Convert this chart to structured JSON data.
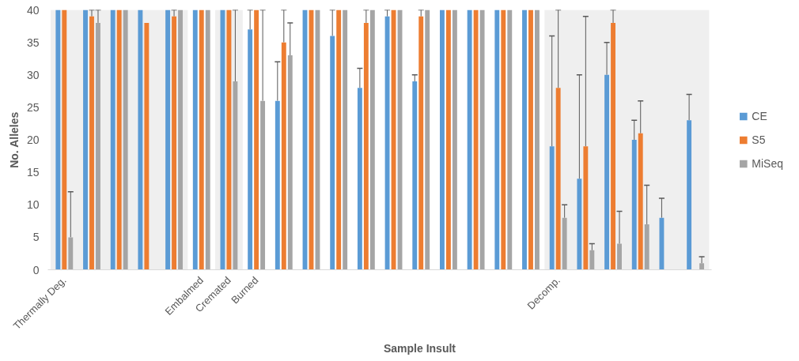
{
  "chart_data": {
    "type": "bar",
    "xlabel": "Sample Insult",
    "ylabel": "No. Alleles",
    "categories": [
      "Thermally Deg.",
      null,
      null,
      null,
      null,
      "Embalmed",
      "Cremated",
      "Burned",
      null,
      null,
      null,
      null,
      null,
      null,
      null,
      null,
      null,
      null,
      "Decomp.",
      null,
      null,
      null,
      null,
      null
    ],
    "series": [
      {
        "name": "CE",
        "color": "#5b9bd5",
        "values": [
          40,
          40,
          40,
          40,
          40,
          40,
          40,
          37,
          26,
          40,
          36,
          28,
          39,
          29,
          40,
          40,
          40,
          40,
          19,
          14,
          30,
          20,
          8,
          23
        ],
        "errors": [
          null,
          null,
          null,
          null,
          null,
          null,
          null,
          [
            37,
            40
          ],
          [
            26,
            32
          ],
          null,
          [
            36,
            40
          ],
          [
            28,
            31
          ],
          [
            39,
            40
          ],
          [
            29,
            30
          ],
          null,
          null,
          null,
          null,
          [
            19,
            36
          ],
          [
            14,
            30
          ],
          [
            30,
            35
          ],
          [
            20,
            23
          ],
          [
            8,
            11
          ],
          [
            23,
            27
          ]
        ]
      },
      {
        "name": "S5",
        "color": "#ed7d31",
        "values": [
          40,
          39,
          40,
          38,
          39,
          40,
          40,
          40,
          35,
          40,
          40,
          38,
          40,
          39,
          40,
          40,
          40,
          40,
          28,
          19,
          38,
          21,
          0,
          0
        ],
        "errors": [
          null,
          [
            39,
            40
          ],
          null,
          null,
          [
            39,
            40
          ],
          null,
          null,
          null,
          [
            35,
            40
          ],
          null,
          null,
          [
            38,
            40
          ],
          null,
          [
            39,
            40
          ],
          null,
          null,
          null,
          null,
          [
            28,
            40
          ],
          [
            19,
            39
          ],
          [
            38,
            40
          ],
          [
            21,
            26
          ],
          null,
          null
        ]
      },
      {
        "name": "MiSeq",
        "color": "#a5a5a5",
        "values": [
          5,
          38,
          40,
          0,
          40,
          40,
          29,
          26,
          33,
          40,
          40,
          40,
          40,
          40,
          40,
          40,
          40,
          40,
          8,
          3,
          4,
          7,
          0,
          1
        ],
        "errors": [
          [
            5,
            12
          ],
          [
            38,
            40
          ],
          null,
          null,
          null,
          null,
          [
            29,
            40
          ],
          [
            26,
            40
          ],
          [
            33,
            38
          ],
          null,
          null,
          null,
          null,
          null,
          null,
          null,
          null,
          null,
          [
            8,
            10
          ],
          [
            3,
            4
          ],
          [
            4,
            9
          ],
          [
            7,
            13
          ],
          null,
          [
            1,
            2
          ]
        ]
      }
    ],
    "ylim": [
      0,
      40
    ],
    "yticks": [
      0,
      5,
      10,
      15,
      20,
      25,
      30,
      35,
      40
    ],
    "grid": false,
    "legend": "right"
  }
}
